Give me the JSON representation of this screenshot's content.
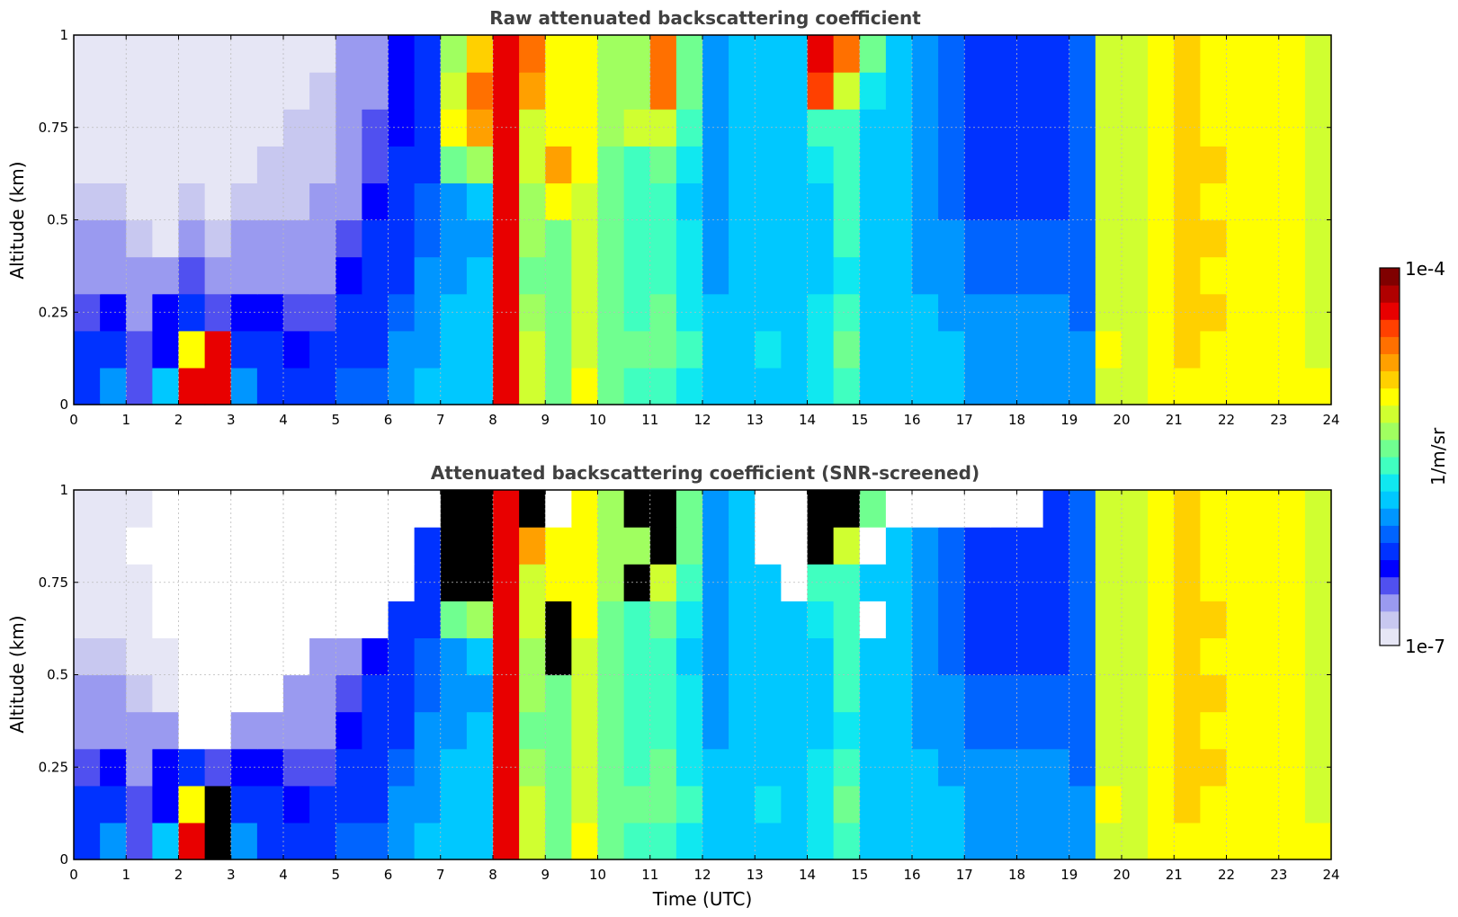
{
  "chart_data": [
    {
      "type": "heatmap",
      "title": "Raw attenuated backscattering coefficient",
      "xlabel": "",
      "ylabel": "Altitude (km)",
      "xlim": [
        0,
        24
      ],
      "ylim": [
        0,
        1
      ],
      "x_ticks": [
        "0",
        "1",
        "2",
        "3",
        "4",
        "5",
        "6",
        "7",
        "8",
        "9",
        "10",
        "11",
        "12",
        "13",
        "14",
        "15",
        "16",
        "17",
        "18",
        "19",
        "20",
        "21",
        "22",
        "23",
        "24"
      ],
      "y_ticks": [
        "0",
        "0.25",
        "0.5",
        "0.75",
        "1"
      ],
      "grid": true,
      "colormap": "jet",
      "color_scale": "log",
      "value_range": [
        "1e-7",
        "1e-4"
      ],
      "units": "1/m/sr",
      "time_columns": [
        0,
        0.5,
        1,
        1.5,
        2,
        2.5,
        3,
        3.5,
        4,
        4.5,
        5,
        5.5,
        6,
        6.5,
        7,
        7.5,
        8,
        8.5,
        9,
        9.5,
        10,
        10.5,
        11,
        11.5,
        12,
        12.5,
        13,
        13.5,
        14,
        14.5,
        15,
        15.5,
        16,
        16.5,
        17,
        17.5,
        18,
        18.5,
        19,
        19.5,
        20,
        20.5,
        21,
        21.5,
        22,
        22.5,
        23,
        23.5
      ],
      "altitude_rows": [
        0.05,
        0.15,
        0.25,
        0.35,
        0.45,
        0.55,
        0.65,
        0.75,
        0.85,
        0.95
      ],
      "log10_values": [
        [
          -6.2,
          -6.0,
          -6.5,
          -5.8,
          -4.4,
          -4.3,
          -6.0,
          -6.3,
          -6.3,
          -6.3,
          -6.1,
          -6.1,
          -6.0,
          -5.9,
          -5.8,
          -5.8,
          -4.3,
          -5.2,
          -5.4,
          -5.0,
          -5.5,
          -5.6,
          -5.6,
          -5.7,
          -5.9,
          -5.9,
          -5.8,
          -5.9,
          -5.7,
          -5.6,
          -5.8,
          -5.8,
          -5.9,
          -5.9,
          -6.0,
          -6.0,
          -6.0,
          -6.0,
          -6.0,
          -5.1,
          -5.2,
          -5.0,
          -5.0,
          -5.0,
          -5.0,
          -5.0,
          -5.0,
          -5.0
        ],
        [
          -6.3,
          -6.3,
          -6.5,
          -6.4,
          -5.0,
          -4.4,
          -6.3,
          -6.3,
          -6.4,
          -6.3,
          -6.3,
          -6.2,
          -6.0,
          -6.0,
          -5.9,
          -5.8,
          -4.3,
          -5.2,
          -5.4,
          -5.1,
          -5.5,
          -5.5,
          -5.5,
          -5.6,
          -5.9,
          -5.8,
          -5.7,
          -5.8,
          -5.7,
          -5.5,
          -5.8,
          -5.8,
          -5.9,
          -5.9,
          -6.0,
          -6.0,
          -6.0,
          -6.0,
          -6.0,
          -5.0,
          -5.1,
          -5.0,
          -4.9,
          -5.0,
          -5.0,
          -5.0,
          -5.0,
          -5.1
        ],
        [
          -6.5,
          -6.4,
          -6.6,
          -6.4,
          -6.3,
          -6.5,
          -6.4,
          -6.4,
          -6.5,
          -6.5,
          -6.3,
          -6.2,
          -6.1,
          -6.0,
          -5.9,
          -5.9,
          -4.3,
          -5.3,
          -5.4,
          -5.2,
          -5.5,
          -5.6,
          -5.5,
          -5.7,
          -5.9,
          -5.9,
          -5.8,
          -5.8,
          -5.7,
          -5.6,
          -5.8,
          -5.8,
          -5.9,
          -6.0,
          -6.0,
          -6.0,
          -6.0,
          -6.0,
          -6.1,
          -5.1,
          -5.1,
          -5.0,
          -4.9,
          -4.9,
          -5.0,
          -5.0,
          -5.0,
          -5.1
        ],
        [
          -6.6,
          -6.6,
          -6.7,
          -6.6,
          -6.5,
          -6.7,
          -6.6,
          -6.6,
          -6.6,
          -6.6,
          -6.4,
          -6.3,
          -6.2,
          -6.0,
          -6.0,
          -5.9,
          -4.3,
          -5.4,
          -5.5,
          -5.2,
          -5.5,
          -5.6,
          -5.6,
          -5.7,
          -6.0,
          -5.9,
          -5.8,
          -5.9,
          -5.8,
          -5.7,
          -5.9,
          -5.9,
          -6.0,
          -6.0,
          -6.1,
          -6.1,
          -6.1,
          -6.1,
          -6.1,
          -5.1,
          -5.1,
          -5.0,
          -4.9,
          -5.0,
          -5.0,
          -5.0,
          -5.0,
          -5.1
        ],
        [
          -6.7,
          -6.7,
          -6.8,
          -6.9,
          -6.7,
          -6.8,
          -6.7,
          -6.7,
          -6.7,
          -6.7,
          -6.5,
          -6.3,
          -6.2,
          -6.1,
          -6.0,
          -6.0,
          -4.3,
          -5.3,
          -5.4,
          -5.1,
          -5.5,
          -5.6,
          -5.6,
          -5.7,
          -6.0,
          -5.9,
          -5.8,
          -5.9,
          -5.8,
          -5.6,
          -5.9,
          -5.9,
          -6.0,
          -6.0,
          -6.1,
          -6.1,
          -6.1,
          -6.1,
          -6.1,
          -5.1,
          -5.1,
          -5.0,
          -4.9,
          -4.9,
          -5.0,
          -5.0,
          -5.0,
          -5.1
        ],
        [
          -6.8,
          -6.8,
          -6.9,
          -7.0,
          -6.8,
          -6.9,
          -6.8,
          -6.8,
          -6.8,
          -6.7,
          -6.6,
          -6.4,
          -6.3,
          -6.1,
          -6.0,
          -5.8,
          -4.3,
          -5.3,
          -5.0,
          -5.1,
          -5.5,
          -5.6,
          -5.6,
          -5.8,
          -6.0,
          -5.9,
          -5.8,
          -5.9,
          -5.8,
          -5.6,
          -5.9,
          -5.9,
          -6.0,
          -6.1,
          -6.2,
          -6.2,
          -6.2,
          -6.2,
          -6.1,
          -5.1,
          -5.1,
          -5.0,
          -4.9,
          -5.0,
          -5.0,
          -5.0,
          -5.0,
          -5.1
        ],
        [
          -6.9,
          -6.9,
          -7.0,
          -7.0,
          -6.9,
          -6.9,
          -6.9,
          -6.8,
          -6.8,
          -6.8,
          -6.7,
          -6.5,
          -6.3,
          -6.2,
          -5.4,
          -5.3,
          -4.3,
          -5.2,
          -4.7,
          -5.0,
          -5.5,
          -5.6,
          -5.4,
          -5.7,
          -6.0,
          -5.9,
          -5.8,
          -5.9,
          -5.7,
          -5.6,
          -5.9,
          -5.9,
          -6.0,
          -6.1,
          -6.2,
          -6.2,
          -6.2,
          -6.2,
          -6.1,
          -5.1,
          -5.1,
          -5.0,
          -4.9,
          -4.9,
          -5.0,
          -5.0,
          -5.0,
          -5.1
        ],
        [
          -6.9,
          -6.9,
          -7.0,
          -7.0,
          -6.9,
          -7.0,
          -6.9,
          -6.9,
          -6.8,
          -6.8,
          -6.7,
          -6.5,
          -6.4,
          -6.2,
          -5.0,
          -4.8,
          -4.3,
          -5.1,
          -5.0,
          -5.0,
          -5.3,
          -5.2,
          -5.2,
          -5.6,
          -6.0,
          -5.9,
          -5.8,
          -5.9,
          -5.6,
          -5.6,
          -5.9,
          -5.9,
          -6.0,
          -6.1,
          -6.2,
          -6.2,
          -6.2,
          -6.2,
          -6.1,
          -5.1,
          -5.1,
          -5.0,
          -4.9,
          -5.0,
          -5.0,
          -5.0,
          -5.0,
          -5.1
        ],
        [
          -6.9,
          -6.9,
          -7.0,
          -7.0,
          -6.9,
          -7.0,
          -6.9,
          -6.9,
          -6.9,
          -6.8,
          -6.7,
          -6.6,
          -6.4,
          -6.3,
          -5.2,
          -4.6,
          -4.3,
          -4.8,
          -5.0,
          -5.0,
          -5.3,
          -5.3,
          -4.6,
          -5.5,
          -6.0,
          -5.9,
          -5.8,
          -5.9,
          -4.5,
          -5.2,
          -5.7,
          -5.9,
          -6.0,
          -6.1,
          -6.2,
          -6.2,
          -6.2,
          -6.2,
          -6.1,
          -5.1,
          -5.1,
          -5.0,
          -4.9,
          -5.0,
          -5.0,
          -5.0,
          -5.0,
          -5.1
        ],
        [
          -7.0,
          -6.9,
          -6.9,
          -7.0,
          -6.9,
          -7.0,
          -6.9,
          -6.9,
          -6.9,
          -6.9,
          -6.7,
          -6.6,
          -6.4,
          -6.3,
          -5.3,
          -4.9,
          -4.3,
          -4.6,
          -5.0,
          -5.0,
          -5.3,
          -5.3,
          -4.6,
          -5.5,
          -6.0,
          -5.9,
          -5.8,
          -5.9,
          -4.3,
          -4.6,
          -5.5,
          -5.9,
          -6.0,
          -6.1,
          -6.2,
          -6.2,
          -6.2,
          -6.2,
          -6.1,
          -5.1,
          -5.1,
          -5.0,
          -4.9,
          -5.0,
          -5.0,
          -5.0,
          -5.0,
          -5.1
        ]
      ]
    },
    {
      "type": "heatmap",
      "title": "Attenuated backscattering coefficient (SNR-screened)",
      "xlabel": "Time (UTC)",
      "ylabel": "Altitude (km)",
      "xlim": [
        0,
        24
      ],
      "ylim": [
        0,
        1
      ],
      "x_ticks": [
        "0",
        "1",
        "2",
        "3",
        "4",
        "5",
        "6",
        "7",
        "8",
        "9",
        "10",
        "11",
        "12",
        "13",
        "14",
        "15",
        "16",
        "17",
        "18",
        "19",
        "20",
        "21",
        "22",
        "23",
        "24"
      ],
      "y_ticks": [
        "0",
        "0.25",
        "0.5",
        "0.75",
        "1"
      ],
      "grid": true,
      "colormap": "jet",
      "color_scale": "log",
      "value_range": [
        "1e-7",
        "1e-4"
      ],
      "units": "1/m/sr",
      "screened_mask_color": "#ffffff",
      "saturated_color": "#000000",
      "time_columns": [
        0,
        0.5,
        1,
        1.5,
        2,
        2.5,
        3,
        3.5,
        4,
        4.5,
        5,
        5.5,
        6,
        6.5,
        7,
        7.5,
        8,
        8.5,
        9,
        9.5,
        10,
        10.5,
        11,
        11.5,
        12,
        12.5,
        13,
        13.5,
        14,
        14.5,
        15,
        15.5,
        16,
        16.5,
        17,
        17.5,
        18,
        18.5,
        19,
        19.5,
        20,
        20.5,
        21,
        21.5,
        22,
        22.5,
        23,
        23.5
      ],
      "altitude_rows": [
        0.05,
        0.15,
        0.25,
        0.35,
        0.45,
        0.55,
        0.65,
        0.75,
        0.85,
        0.95
      ],
      "log10_values": [
        [
          -6.2,
          -6.0,
          -6.5,
          -5.8,
          -4.4,
          -3.9,
          -6.0,
          -6.3,
          -6.3,
          -6.3,
          -6.1,
          -6.1,
          -6.0,
          -5.9,
          -5.8,
          -5.8,
          -4.3,
          -5.2,
          -5.4,
          -5.0,
          -5.5,
          -5.6,
          -5.6,
          -5.7,
          -5.9,
          -5.9,
          -5.8,
          -5.9,
          -5.7,
          -5.6,
          -5.8,
          -5.8,
          -5.9,
          -5.9,
          -6.0,
          -6.0,
          -6.0,
          -6.0,
          -6.0,
          -5.1,
          -5.2,
          -5.0,
          -5.0,
          -5.0,
          -5.0,
          -5.0,
          -5.0,
          -5.0
        ],
        [
          -6.3,
          -6.3,
          -6.5,
          -6.4,
          -5.0,
          -3.9,
          -6.3,
          -6.3,
          -6.4,
          -6.3,
          -6.3,
          -6.2,
          -6.0,
          -6.0,
          -5.9,
          -5.8,
          -4.3,
          -5.2,
          -5.4,
          -5.1,
          -5.5,
          -5.5,
          -5.5,
          -5.6,
          -5.9,
          -5.8,
          -5.7,
          -5.8,
          -5.7,
          -5.5,
          -5.8,
          -5.8,
          -5.9,
          -5.9,
          -6.0,
          -6.0,
          -6.0,
          -6.0,
          -6.0,
          -5.0,
          -5.1,
          -5.0,
          -4.9,
          -5.0,
          -5.0,
          -5.0,
          -5.0,
          -5.1
        ],
        [
          -6.5,
          -6.4,
          -6.6,
          -6.4,
          -6.3,
          -6.5,
          -6.4,
          -6.4,
          -6.5,
          -6.5,
          -6.3,
          -6.2,
          -6.1,
          -6.0,
          -5.9,
          -5.9,
          -4.3,
          -5.3,
          -5.4,
          -5.2,
          -5.5,
          -5.6,
          -5.5,
          -5.7,
          -5.9,
          -5.9,
          -5.8,
          -5.8,
          -5.7,
          -5.6,
          -5.8,
          -5.8,
          -5.9,
          -6.0,
          -6.0,
          -6.0,
          -6.0,
          -6.0,
          -6.1,
          -5.1,
          -5.1,
          -5.0,
          -4.9,
          -4.9,
          -5.0,
          -5.0,
          -5.0,
          -5.1
        ],
        [
          -6.6,
          -6.6,
          -6.7,
          -6.6,
          null,
          null,
          -6.6,
          -6.6,
          -6.6,
          -6.6,
          -6.4,
          -6.3,
          -6.2,
          -6.0,
          -6.0,
          -5.9,
          -4.3,
          -5.4,
          -5.5,
          -5.2,
          -5.5,
          -5.6,
          -5.6,
          -5.7,
          -6.0,
          -5.9,
          -5.8,
          -5.9,
          -5.8,
          -5.7,
          -5.9,
          -5.9,
          -6.0,
          -6.0,
          -6.1,
          -6.1,
          -6.1,
          -6.1,
          -6.1,
          -5.1,
          -5.1,
          -5.0,
          -4.9,
          -5.0,
          -5.0,
          -5.0,
          -5.0,
          -5.1
        ],
        [
          -6.7,
          -6.7,
          -6.8,
          -6.9,
          null,
          null,
          null,
          null,
          -6.6,
          -6.6,
          -6.5,
          -6.3,
          -6.2,
          -6.1,
          -6.0,
          -6.0,
          -4.3,
          -5.3,
          -5.4,
          -5.1,
          -5.5,
          -5.6,
          -5.6,
          -5.7,
          -6.0,
          -5.9,
          -5.8,
          -5.9,
          -5.8,
          -5.6,
          -5.9,
          -5.9,
          -6.0,
          -6.0,
          -6.1,
          -6.1,
          -6.1,
          -6.1,
          -6.1,
          -5.1,
          -5.1,
          -5.0,
          -4.9,
          -4.9,
          -5.0,
          -5.0,
          -5.0,
          -5.1
        ],
        [
          -6.8,
          -6.8,
          -6.9,
          -7.0,
          null,
          null,
          null,
          null,
          null,
          -6.6,
          -6.6,
          -6.4,
          -6.3,
          -6.1,
          -6.0,
          -5.8,
          -4.3,
          -5.3,
          -3.9,
          -5.1,
          -5.5,
          -5.6,
          -5.6,
          -5.8,
          -6.0,
          -5.9,
          -5.8,
          -5.9,
          -5.8,
          -5.6,
          -5.9,
          -5.9,
          -6.0,
          -6.1,
          -6.2,
          -6.2,
          -6.2,
          -6.2,
          -6.1,
          -5.1,
          -5.1,
          -5.0,
          -4.9,
          -5.0,
          -5.0,
          -5.0,
          -5.0,
          -5.1
        ],
        [
          -6.9,
          -6.9,
          -7.0,
          null,
          null,
          null,
          null,
          null,
          null,
          null,
          null,
          null,
          -6.3,
          -6.2,
          -5.4,
          -5.3,
          -4.3,
          -5.2,
          -3.9,
          -5.0,
          -5.5,
          -5.6,
          -5.4,
          -5.7,
          -6.0,
          -5.9,
          -5.8,
          -5.9,
          -5.7,
          -5.6,
          null,
          -5.9,
          -6.0,
          -6.1,
          -6.2,
          -6.2,
          -6.2,
          -6.2,
          -6.1,
          -5.1,
          -5.1,
          -5.0,
          -4.9,
          -4.9,
          -5.0,
          -5.0,
          -5.0,
          -5.1
        ],
        [
          -6.9,
          -6.9,
          -7.0,
          null,
          null,
          null,
          null,
          null,
          null,
          null,
          null,
          null,
          null,
          -6.2,
          -3.9,
          -3.9,
          -4.3,
          -5.1,
          -5.0,
          -5.0,
          -5.3,
          -3.9,
          -5.2,
          -5.6,
          -6.0,
          -5.9,
          -5.8,
          null,
          -5.6,
          -5.6,
          -5.9,
          -5.9,
          -6.0,
          -6.1,
          -6.2,
          -6.2,
          -6.2,
          -6.2,
          -6.1,
          -5.1,
          -5.1,
          -5.0,
          -4.9,
          -5.0,
          -5.0,
          -5.0,
          -5.0,
          -5.1
        ],
        [
          -6.9,
          -6.9,
          null,
          null,
          null,
          null,
          null,
          null,
          null,
          null,
          null,
          null,
          null,
          -6.3,
          -3.9,
          -3.9,
          -4.3,
          -4.8,
          -5.0,
          -5.0,
          -5.3,
          -5.3,
          -3.9,
          -5.5,
          -6.0,
          -5.9,
          null,
          null,
          -3.9,
          -5.2,
          null,
          -5.9,
          -6.0,
          -6.1,
          -6.2,
          -6.2,
          -6.2,
          -6.2,
          -6.1,
          -5.1,
          -5.1,
          -5.0,
          -4.9,
          -5.0,
          -5.0,
          -5.0,
          -5.0,
          -5.1
        ],
        [
          -6.9,
          -6.9,
          -6.9,
          null,
          null,
          null,
          null,
          null,
          null,
          null,
          null,
          null,
          null,
          null,
          -3.9,
          -3.9,
          -4.3,
          -3.9,
          null,
          -5.0,
          -5.3,
          -3.9,
          -3.9,
          -5.5,
          -6.0,
          -5.9,
          null,
          null,
          -3.9,
          -3.9,
          -5.5,
          null,
          null,
          null,
          null,
          null,
          null,
          -6.2,
          -6.1,
          -5.1,
          -5.1,
          -5.0,
          -4.9,
          -5.0,
          -5.0,
          -5.0,
          -5.0,
          -5.1
        ]
      ]
    }
  ],
  "colorbar": {
    "top_label": "1e-4",
    "bottom_label": "1e-7",
    "units_label": "1/m/sr",
    "colors": [
      "#e6e6f5",
      "#c8c8f0",
      "#9a9af0",
      "#5050f0",
      "#0000ff",
      "#0032ff",
      "#0064ff",
      "#0096ff",
      "#00c8ff",
      "#10e8f0",
      "#40ffc0",
      "#70ff90",
      "#a0ff60",
      "#d0ff30",
      "#ffff00",
      "#ffd000",
      "#ffa000",
      "#ff7000",
      "#ff4000",
      "#e80000",
      "#b00000",
      "#800000"
    ]
  }
}
